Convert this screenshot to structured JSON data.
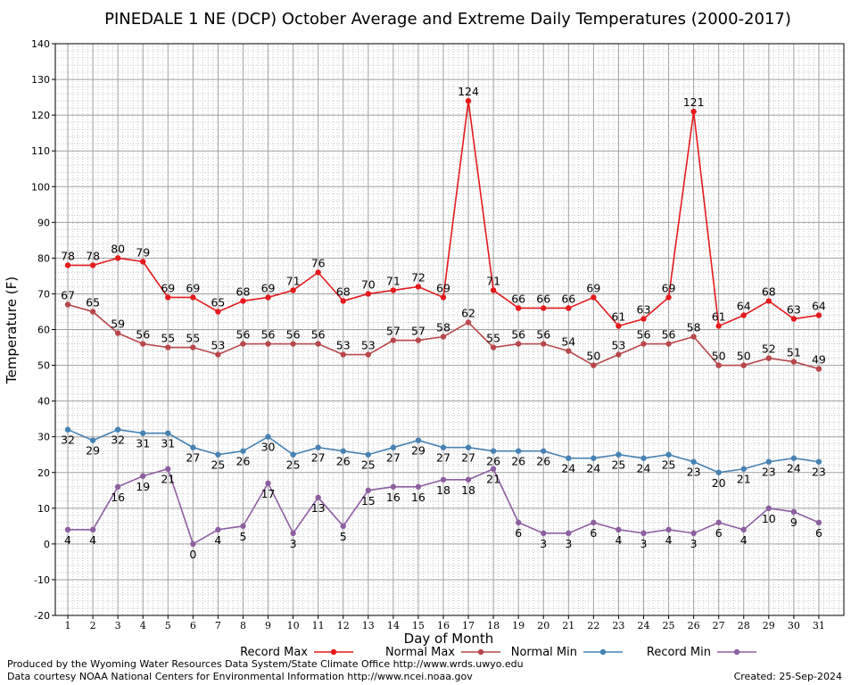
{
  "chart_data": {
    "type": "line",
    "title": "PINEDALE 1 NE (DCP) October Average and Extreme Daily Temperatures (2000-2017)",
    "xlabel": "Day of Month",
    "ylabel": "Temperature (F)",
    "ylim": [
      -20,
      140
    ],
    "y_ticks": [
      -20,
      -10,
      0,
      10,
      20,
      30,
      40,
      50,
      60,
      70,
      80,
      90,
      100,
      110,
      120,
      130,
      140
    ],
    "x": [
      1,
      2,
      3,
      4,
      5,
      6,
      7,
      8,
      9,
      10,
      11,
      12,
      13,
      14,
      15,
      16,
      17,
      18,
      19,
      20,
      21,
      22,
      23,
      24,
      25,
      26,
      27,
      28,
      29,
      30,
      31
    ],
    "grid": true,
    "legend_position": "bottom",
    "series": [
      {
        "name": "Record Max",
        "color": "#e41a1c",
        "label_position": "above",
        "values": [
          78,
          78,
          80,
          79,
          69,
          69,
          65,
          68,
          69,
          71,
          76,
          68,
          70,
          71,
          72,
          69,
          124,
          71,
          66,
          66,
          66,
          69,
          61,
          63,
          69,
          121,
          61,
          64,
          68,
          63,
          64
        ]
      },
      {
        "name": "Normal Max",
        "color": "#b8474a",
        "label_position": "above",
        "values": [
          67,
          65,
          59,
          56,
          55,
          55,
          53,
          56,
          56,
          56,
          56,
          53,
          53,
          57,
          57,
          58,
          62,
          55,
          56,
          56,
          54,
          50,
          53,
          56,
          56,
          58,
          50,
          50,
          52,
          51,
          49
        ]
      },
      {
        "name": "Normal Min",
        "color": "#4682b4",
        "label_position": "below",
        "values": [
          32,
          29,
          32,
          31,
          31,
          27,
          25,
          26,
          30,
          25,
          27,
          26,
          25,
          27,
          29,
          27,
          27,
          26,
          26,
          26,
          24,
          24,
          25,
          24,
          25,
          23,
          20,
          21,
          23,
          24,
          23
        ]
      },
      {
        "name": "Record Min",
        "color": "#8e5ea2",
        "label_position": "below",
        "values": [
          4,
          4,
          16,
          19,
          21,
          0,
          4,
          5,
          17,
          3,
          13,
          5,
          15,
          16,
          16,
          18,
          18,
          21,
          6,
          3,
          3,
          6,
          4,
          3,
          4,
          3,
          6,
          4,
          10,
          9,
          6
        ]
      }
    ]
  },
  "footer": {
    "produced_by": "Produced by the Wyoming Water Resources Data System/State Climate Office http://www.wrds.uwyo.edu",
    "data_courtesy": "Data courtesy NOAA National Centers for Environmental Information http://www.ncei.noaa.gov",
    "created": "Created:  25-Sep-2024"
  }
}
